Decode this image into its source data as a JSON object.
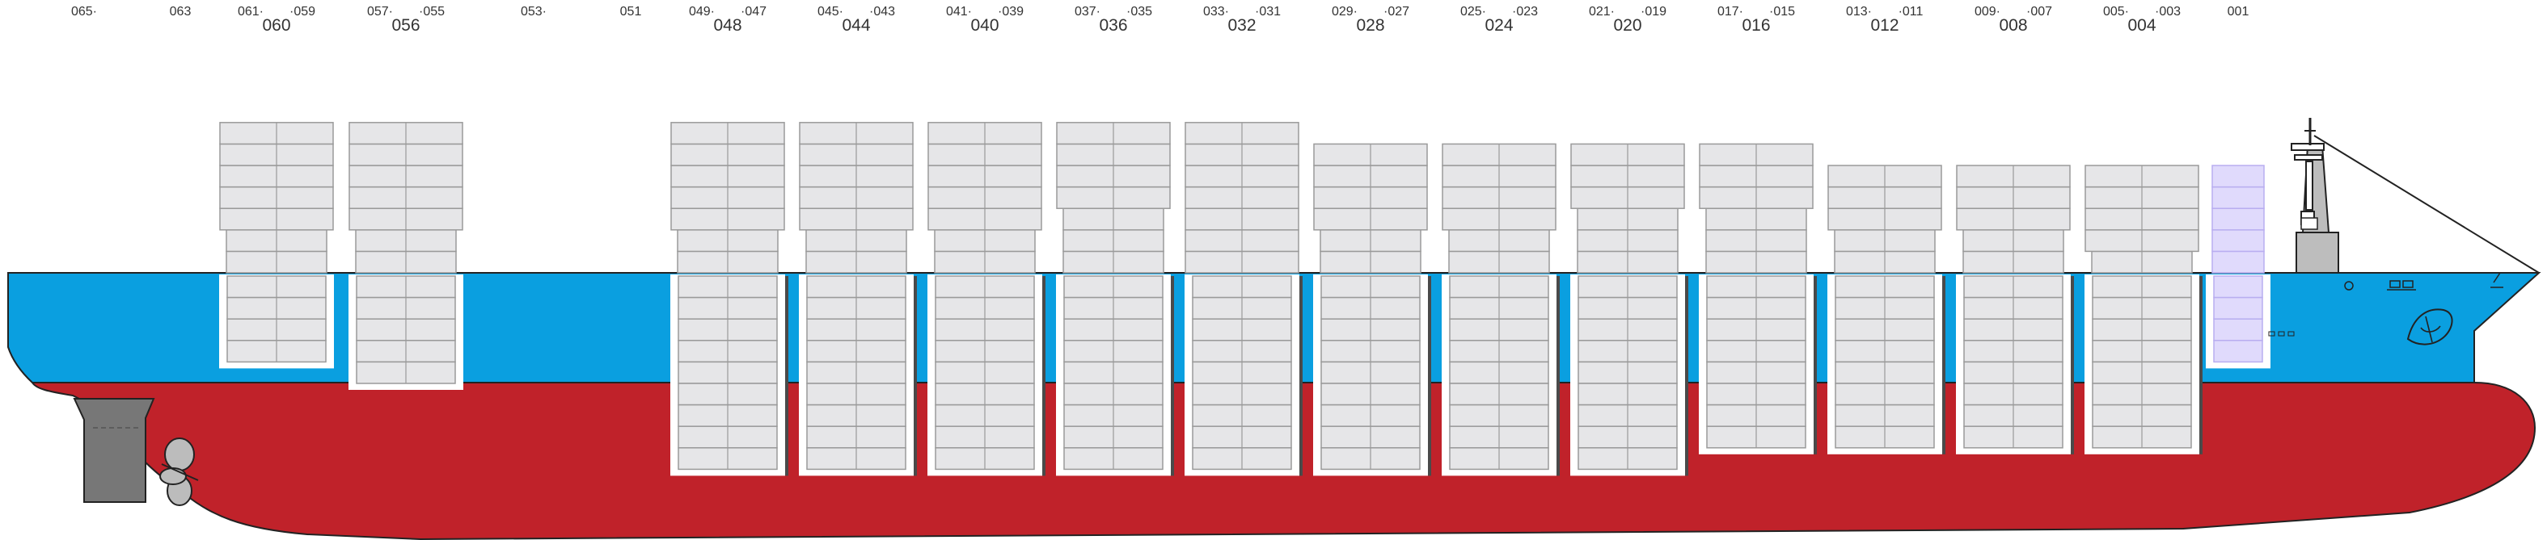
{
  "colors": {
    "hull_red": "#c0222a",
    "hull_blue": "#0a9fe0",
    "container_fill": "#e6e6e8",
    "container_stroke": "#9a9a9a",
    "reefer_fill": "#e0dafc",
    "reefer_stroke": "#b9aef0",
    "hold_frame": "#ffffff",
    "machinery_grey": "#777777"
  },
  "bay_labels": [
    {
      "id": "065",
      "text": "065·",
      "major": false
    },
    {
      "id": "063",
      "text": "063",
      "major": false
    },
    {
      "id": "061",
      "text": "061·",
      "major": false
    },
    {
      "id": "059",
      "text": "·059",
      "major": false
    },
    {
      "id": "060",
      "text": "060",
      "major": true
    },
    {
      "id": "057",
      "text": "057·",
      "major": false
    },
    {
      "id": "055",
      "text": "·055",
      "major": false
    },
    {
      "id": "056",
      "text": "056",
      "major": true
    },
    {
      "id": "053",
      "text": "053·",
      "major": false
    },
    {
      "id": "051",
      "text": "051",
      "major": false
    },
    {
      "id": "049",
      "text": "049·",
      "major": false
    },
    {
      "id": "047",
      "text": "·047",
      "major": false
    },
    {
      "id": "048",
      "text": "048",
      "major": true
    },
    {
      "id": "045",
      "text": "045·",
      "major": false
    },
    {
      "id": "043",
      "text": "·043",
      "major": false
    },
    {
      "id": "044",
      "text": "044",
      "major": true
    },
    {
      "id": "041",
      "text": "041·",
      "major": false
    },
    {
      "id": "039",
      "text": "·039",
      "major": false
    },
    {
      "id": "040",
      "text": "040",
      "major": true
    },
    {
      "id": "037",
      "text": "037·",
      "major": false
    },
    {
      "id": "035",
      "text": "·035",
      "major": false
    },
    {
      "id": "036",
      "text": "036",
      "major": true
    },
    {
      "id": "033",
      "text": "033·",
      "major": false
    },
    {
      "id": "031",
      "text": "·031",
      "major": false
    },
    {
      "id": "032",
      "text": "032",
      "major": true
    },
    {
      "id": "029",
      "text": "029·",
      "major": false
    },
    {
      "id": "027",
      "text": "·027",
      "major": false
    },
    {
      "id": "028",
      "text": "028",
      "major": true
    },
    {
      "id": "025",
      "text": "025·",
      "major": false
    },
    {
      "id": "023",
      "text": "·023",
      "major": false
    },
    {
      "id": "024",
      "text": "024",
      "major": true
    },
    {
      "id": "021",
      "text": "021·",
      "major": false
    },
    {
      "id": "019",
      "text": "·019",
      "major": false
    },
    {
      "id": "020",
      "text": "020",
      "major": true
    },
    {
      "id": "017",
      "text": "017·",
      "major": false
    },
    {
      "id": "015",
      "text": "·015",
      "major": false
    },
    {
      "id": "016",
      "text": "016",
      "major": true
    },
    {
      "id": "013",
      "text": "013·",
      "major": false
    },
    {
      "id": "011",
      "text": "·011",
      "major": false
    },
    {
      "id": "012",
      "text": "012",
      "major": true
    },
    {
      "id": "009",
      "text": "009·",
      "major": false
    },
    {
      "id": "007",
      "text": "·007",
      "major": false
    },
    {
      "id": "008",
      "text": "008",
      "major": true
    },
    {
      "id": "005",
      "text": "005·",
      "major": false
    },
    {
      "id": "003",
      "text": "·003",
      "major": false
    },
    {
      "id": "004",
      "text": "004",
      "major": true
    },
    {
      "id": "001",
      "text": "001",
      "major": false
    }
  ],
  "bays": [
    {
      "id": "060",
      "deck_wide_tiers": 5,
      "deck_narrow_tiers": 2,
      "hold_tiers": 4,
      "hold_deep": false
    },
    {
      "id": "056",
      "deck_wide_tiers": 5,
      "deck_narrow_tiers": 2,
      "hold_tiers": 5,
      "hold_deep": false
    },
    {
      "id": "048",
      "deck_wide_tiers": 5,
      "deck_narrow_tiers": 2,
      "hold_tiers": 9,
      "hold_deep": true
    },
    {
      "id": "044",
      "deck_wide_tiers": 5,
      "deck_narrow_tiers": 2,
      "hold_tiers": 9,
      "hold_deep": true
    },
    {
      "id": "040",
      "deck_wide_tiers": 5,
      "deck_narrow_tiers": 2,
      "hold_tiers": 9,
      "hold_deep": true
    },
    {
      "id": "036",
      "deck_wide_tiers": 4,
      "deck_narrow_tiers": 3,
      "hold_tiers": 9,
      "hold_deep": true
    },
    {
      "id": "032",
      "deck_wide_tiers": 7,
      "deck_narrow_tiers": 0,
      "hold_tiers": 9,
      "hold_deep": true
    },
    {
      "id": "028",
      "deck_wide_tiers": 4,
      "deck_narrow_tiers": 2,
      "hold_tiers": 9,
      "hold_deep": true
    },
    {
      "id": "024",
      "deck_wide_tiers": 4,
      "deck_narrow_tiers": 2,
      "hold_tiers": 9,
      "hold_deep": true
    },
    {
      "id": "020",
      "deck_wide_tiers": 3,
      "deck_narrow_tiers": 3,
      "hold_tiers": 9,
      "hold_deep": true
    },
    {
      "id": "016",
      "deck_wide_tiers": 3,
      "deck_narrow_tiers": 3,
      "hold_tiers": 8,
      "hold_deep": true
    },
    {
      "id": "012",
      "deck_wide_tiers": 3,
      "deck_narrow_tiers": 2,
      "hold_tiers": 8,
      "hold_deep": true
    },
    {
      "id": "008",
      "deck_wide_tiers": 3,
      "deck_narrow_tiers": 2,
      "hold_tiers": 8,
      "hold_deep": true
    },
    {
      "id": "004",
      "deck_wide_tiers": 4,
      "deck_narrow_tiers": 1,
      "hold_tiers": 8,
      "hold_deep": true
    },
    {
      "id": "001",
      "deck_wide_tiers": 5,
      "deck_narrow_tiers": 0,
      "hold_tiers": 4,
      "hold_deep": false,
      "reefer": true
    }
  ]
}
